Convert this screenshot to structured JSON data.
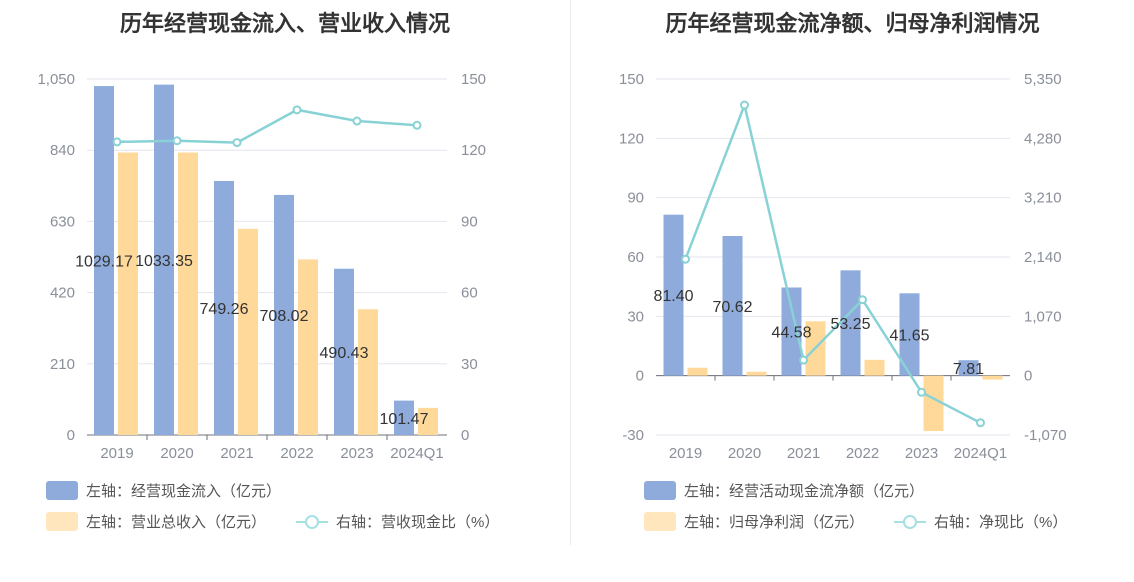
{
  "colors": {
    "bar1": "#8eabdb",
    "bar2": "#ffd99a",
    "line": "#88d2d6",
    "grid": "#e3e6ee",
    "text": "#8a8f99"
  },
  "chart_data": [
    {
      "type": "bar",
      "title": "历年经营现金流入、营业收入情况",
      "categories": [
        "2019",
        "2020",
        "2021",
        "2022",
        "2023",
        "2024Q1"
      ],
      "left_axis": {
        "ylim": [
          0,
          1050
        ],
        "ticks": [
          "0",
          "210",
          "420",
          "630",
          "840",
          "1,050"
        ]
      },
      "right_axis": {
        "ylim": [
          0,
          150
        ],
        "ticks": [
          "0",
          "30",
          "60",
          "90",
          "120",
          "150"
        ]
      },
      "series": [
        {
          "name": "左轴：经营现金流入（亿元）",
          "axis": "left",
          "kind": "bar",
          "values": [
            1029.17,
            1033.35,
            749.26,
            708.02,
            490.43,
            101.47
          ],
          "labels": [
            "1029.17",
            "1033.35",
            "749.26",
            "708.02",
            "490.43",
            "101.47"
          ]
        },
        {
          "name": "左轴：营业总收入（亿元）",
          "axis": "left",
          "kind": "bar",
          "values": [
            833,
            833,
            608,
            518,
            371,
            80
          ]
        },
        {
          "name": "右轴：营收现金比（%）",
          "axis": "right",
          "kind": "line",
          "values": [
            123.5,
            124,
            123.2,
            137,
            132.3,
            130.5
          ]
        }
      ],
      "grid": true,
      "legend": "bottom"
    },
    {
      "type": "bar",
      "title": "历年经营现金流净额、归母净利润情况",
      "categories": [
        "2019",
        "2020",
        "2021",
        "2022",
        "2023",
        "2024Q1"
      ],
      "left_axis": {
        "ylim": [
          -30,
          150
        ],
        "ticks": [
          "-30",
          "0",
          "30",
          "60",
          "90",
          "120",
          "150"
        ]
      },
      "right_axis": {
        "ylim": [
          -1070,
          5350
        ],
        "ticks": [
          "-1,070",
          "0",
          "1,070",
          "2,140",
          "3,210",
          "4,280",
          "5,350"
        ]
      },
      "series": [
        {
          "name": "左轴：经营活动现金流净额（亿元）",
          "axis": "left",
          "kind": "bar",
          "values": [
            81.4,
            70.62,
            44.58,
            53.25,
            41.65,
            7.81
          ],
          "labels": [
            "81.40",
            "70.62",
            "44.58",
            "53.25",
            "41.65",
            "7.81"
          ]
        },
        {
          "name": "左轴：归母净利润（亿元）",
          "axis": "left",
          "kind": "bar",
          "values": [
            4,
            2,
            27.5,
            8,
            -28,
            -2
          ]
        },
        {
          "name": "右轴：净现比（%）",
          "axis": "right",
          "kind": "line",
          "values": [
            2100,
            4880,
            280,
            1370,
            -300,
            -850
          ]
        }
      ],
      "grid": true,
      "legend": "bottom"
    }
  ]
}
